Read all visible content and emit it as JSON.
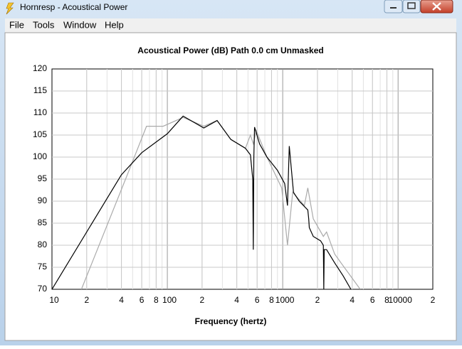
{
  "window": {
    "title": "Hornresp - Acoustical Power"
  },
  "menu": [
    "File",
    "Tools",
    "Window",
    "Help"
  ],
  "chart_data": {
    "type": "line",
    "title": "Acoustical Power (dB)    Path 0.0 cm    Unmasked",
    "x_label": "Frequency (hertz)",
    "log_x": true,
    "grid": true,
    "xlim": [
      10,
      20000
    ],
    "ylim": [
      70,
      120
    ],
    "xticks": [
      10,
      {
        "value": 20,
        "label": "2"
      },
      {
        "value": 40,
        "label": "4"
      },
      {
        "value": 60,
        "label": "6"
      },
      {
        "value": 80,
        "label": "8"
      },
      100,
      {
        "value": 200,
        "label": "2"
      },
      {
        "value": 400,
        "label": "4"
      },
      {
        "value": 600,
        "label": "6"
      },
      {
        "value": 800,
        "label": "8"
      },
      1000,
      {
        "value": 2000,
        "label": "2"
      },
      {
        "value": 4000,
        "label": "4"
      },
      {
        "value": 6000,
        "label": "6"
      },
      {
        "value": 8000,
        "label": "8"
      },
      10000,
      {
        "value": 20000,
        "label": "2"
      }
    ],
    "yticks": [
      70,
      75,
      80,
      85,
      90,
      95,
      100,
      105,
      110,
      115,
      120
    ],
    "series": [
      {
        "color": "#aaaaaa",
        "x": [
          18,
          45,
          66,
          92,
          137,
          207,
          270,
          355,
          475,
          525,
          556,
          590,
          730,
          980,
          1100,
          1220,
          1540,
          1650,
          1840,
          2250,
          2400,
          2820,
          3200,
          4700
        ],
        "values": [
          70,
          96,
          107,
          107,
          109,
          107,
          108.3,
          104,
          102,
          105,
          103,
          106,
          100,
          93,
          80,
          92,
          89,
          93,
          86,
          82,
          83,
          78,
          76,
          70
        ]
      },
      {
        "color": "#000000",
        "x": [
          10,
          40,
          60,
          100,
          137,
          207,
          270,
          355,
          475,
          525,
          550,
          556,
          562,
          570,
          630,
          730,
          900,
          1040,
          1100,
          1140,
          1240,
          1390,
          1650,
          1680,
          1700,
          1840,
          2130,
          2250,
          2270,
          2290,
          2400,
          2820,
          3350,
          3900
        ],
        "values": [
          70,
          96,
          101,
          105.3,
          109.3,
          106.6,
          108.3,
          104,
          102,
          100.5,
          95,
          79,
          100,
          106.8,
          103,
          100,
          97,
          94,
          89,
          102.5,
          92,
          90,
          88,
          86,
          84,
          82,
          81,
          80,
          70,
          79,
          79,
          76,
          73,
          70
        ]
      }
    ]
  }
}
